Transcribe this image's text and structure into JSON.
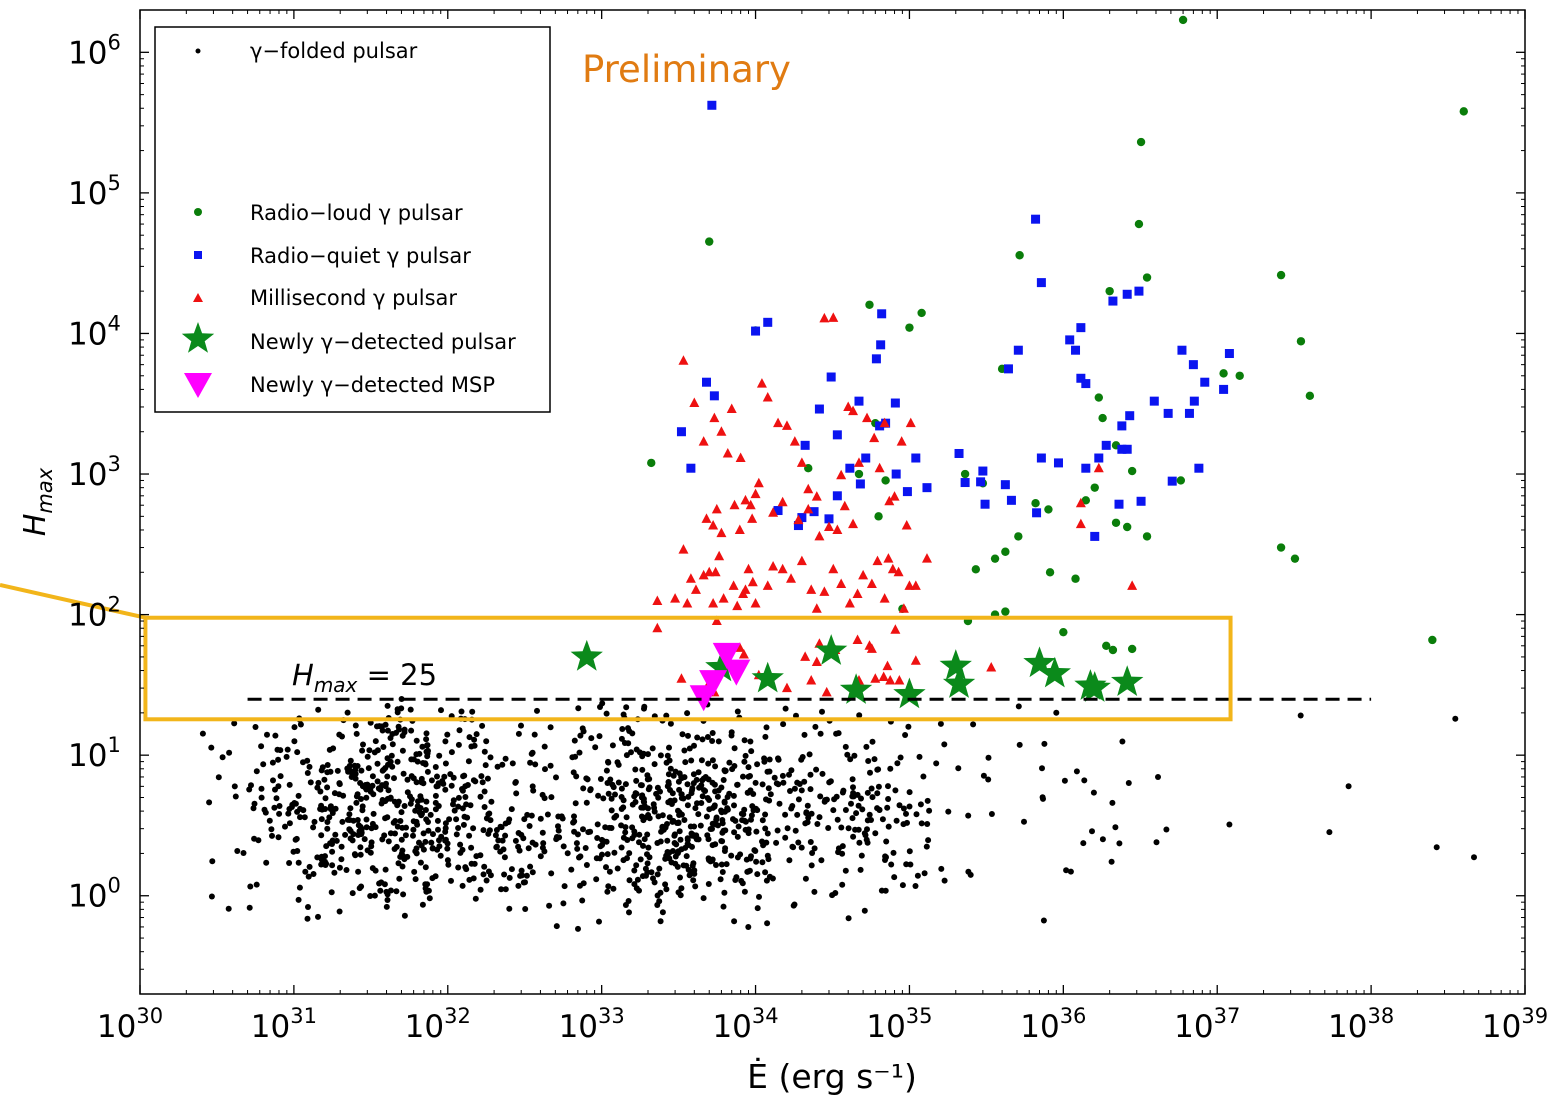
{
  "chart_data": {
    "type": "scatter",
    "title": "",
    "annotation": "Preliminary",
    "xlabel": "Ė (erg s⁻¹)",
    "ylabel": "H_max",
    "x_scale": "log",
    "y_scale": "log",
    "xlim": [
      1e+30,
      1e+39
    ],
    "ylim": [
      0.2,
      2000000.0
    ],
    "grid": false,
    "legend_position": "upper-left",
    "x_ticks": [
      {
        "base": "10",
        "exp": "30"
      },
      {
        "base": "10",
        "exp": "31"
      },
      {
        "base": "10",
        "exp": "32"
      },
      {
        "base": "10",
        "exp": "33"
      },
      {
        "base": "10",
        "exp": "34"
      },
      {
        "base": "10",
        "exp": "35"
      },
      {
        "base": "10",
        "exp": "36"
      },
      {
        "base": "10",
        "exp": "37"
      },
      {
        "base": "10",
        "exp": "38"
      },
      {
        "base": "10",
        "exp": "39"
      }
    ],
    "y_ticks": [
      {
        "base": "10",
        "exp": "0"
      },
      {
        "base": "10",
        "exp": "1"
      },
      {
        "base": "10",
        "exp": "2"
      },
      {
        "base": "10",
        "exp": "3"
      },
      {
        "base": "10",
        "exp": "4"
      },
      {
        "base": "10",
        "exp": "5"
      },
      {
        "base": "10",
        "exp": "6"
      }
    ],
    "threshold": {
      "label_base": "H",
      "label_sub": "max",
      "label_rest": " = 25",
      "y": 25,
      "x_range": [
        5e+30,
        1e+38
      ]
    },
    "highlight_box": {
      "y_range": [
        18,
        95
      ],
      "x_range": [
        3e+30,
        2e+37
      ],
      "color": "#f2b51a"
    },
    "colors": {
      "folded": "#000000",
      "radio_loud": "#0a7d0a",
      "radio_quiet": "#0a14f0",
      "msp": "#ee1111",
      "new_pulsar": "#0b8a1b",
      "new_msp": "#ff00ff"
    },
    "series": [
      {
        "name": "γ−folded pulsar",
        "marker": "dot",
        "color": "#000000",
        "points": "generated"
      },
      {
        "name": "Radio−loud γ pulsar",
        "marker": "circle",
        "color": "#0a7d0a",
        "points": [
          [
            5e+33,
            45000
          ],
          [
            5.5e+34,
            16000
          ],
          [
            3.2e+36,
            230000
          ],
          [
            3.1e+36,
            60000
          ],
          [
            3.5e+36,
            25000
          ],
          [
            2e+36,
            20000
          ],
          [
            5.2e+35,
            36000
          ],
          [
            4e+35,
            5600
          ],
          [
            6e+34,
            2300
          ],
          [
            1.2e+35,
            14000
          ],
          [
            1e+35,
            11000
          ],
          [
            2.2e+34,
            1100
          ],
          [
            1e+34,
            10500
          ],
          [
            2.1e+33,
            1200
          ],
          [
            1.7e+36,
            3500
          ],
          [
            1.8e+36,
            2500
          ],
          [
            2.4e+36,
            2200
          ],
          [
            2.2e+36,
            1600
          ],
          [
            1.6e+36,
            800
          ],
          [
            2.8e+36,
            1050
          ],
          [
            1.4e+36,
            650
          ],
          [
            5.8e+36,
            900
          ],
          [
            3e+35,
            860
          ],
          [
            2.3e+35,
            1000
          ],
          [
            7e+34,
            900
          ],
          [
            4.7e+34,
            1000
          ],
          [
            6.3e+34,
            500
          ],
          [
            2.7e+35,
            210
          ],
          [
            3.6e+35,
            250
          ],
          [
            5.1e+35,
            360
          ],
          [
            4.2e+35,
            280
          ],
          [
            8e+35,
            560
          ],
          [
            6.6e+35,
            620
          ],
          [
            1.2e+36,
            180
          ],
          [
            8.2e+35,
            200
          ],
          [
            2.2e+36,
            450
          ],
          [
            2.6e+36,
            420
          ],
          [
            3.5e+36,
            360
          ],
          [
            3.5e+37,
            8800
          ],
          [
            2.6e+37,
            26000
          ],
          [
            1.4e+37,
            5000
          ],
          [
            1.1e+37,
            5200
          ],
          [
            2.6e+37,
            300
          ],
          [
            3.2e+37,
            250
          ],
          [
            4e+37,
            3600
          ],
          [
            2.5e+38,
            66
          ],
          [
            4e+38,
            380000
          ],
          [
            6e+36,
            1700000
          ],
          [
            9e+34,
            110
          ],
          [
            2.4e+35,
            90
          ],
          [
            3.6e+35,
            100
          ],
          [
            4.2e+35,
            105
          ],
          [
            2.1e+36,
            56
          ],
          [
            1.9e+36,
            60
          ],
          [
            2.8e+36,
            57
          ],
          [
            1e+36,
            75
          ]
        ]
      },
      {
        "name": "Radio−quiet γ pulsar",
        "marker": "square",
        "color": "#0a14f0",
        "points": [
          [
            5.2e+33,
            420000
          ],
          [
            6.6e+35,
            65000
          ],
          [
            7.2e+35,
            23000
          ],
          [
            5.1e+35,
            7600
          ],
          [
            4.4e+35,
            5600
          ],
          [
            1.3e+36,
            11000
          ],
          [
            1.1e+36,
            9000
          ],
          [
            1.2e+36,
            7600
          ],
          [
            1.3e+36,
            4800
          ],
          [
            1.4e+36,
            4400
          ],
          [
            2.1e+36,
            17000
          ],
          [
            2.6e+36,
            19000
          ],
          [
            3.1e+36,
            20000
          ],
          [
            1.2e+34,
            12000
          ],
          [
            1e+34,
            10400
          ],
          [
            3.1e+34,
            4900
          ],
          [
            6.6e+34,
            13800
          ],
          [
            6.1e+34,
            6600
          ],
          [
            6.5e+34,
            8300
          ],
          [
            3.3e+33,
            2000
          ],
          [
            4.8e+33,
            4500
          ],
          [
            5.4e+33,
            3600
          ],
          [
            2.1e+34,
            1600
          ],
          [
            3.4e+34,
            1900
          ],
          [
            2.6e+34,
            2900
          ],
          [
            4.7e+34,
            3300
          ],
          [
            5.2e+34,
            1300
          ],
          [
            8.1e+34,
            3200
          ],
          [
            6.4e+34,
            2200
          ],
          [
            7e+34,
            2300
          ],
          [
            2.7e+36,
            2600
          ],
          [
            2.4e+36,
            2200
          ],
          [
            2.6e+36,
            1500
          ],
          [
            6.6e+36,
            2700
          ],
          [
            7.1e+36,
            3300
          ],
          [
            2.4e+36,
            1500
          ],
          [
            1.9e+36,
            1600
          ],
          [
            1.7e+36,
            1300
          ],
          [
            1.4e+36,
            1100
          ],
          [
            9.3e+35,
            1200
          ],
          [
            7.2e+35,
            1300
          ],
          [
            1.1e+35,
            1300
          ],
          [
            2.9e+35,
            880
          ],
          [
            2.3e+35,
            870
          ],
          [
            2.1e+35,
            1400
          ],
          [
            1.3e+35,
            800
          ],
          [
            9.7e+34,
            750
          ],
          [
            8.2e+34,
            1000
          ],
          [
            4.8e+34,
            850
          ],
          [
            4.1e+34,
            1100
          ],
          [
            3.4e+34,
            700
          ],
          [
            3e+34,
            480
          ],
          [
            2.4e+34,
            540
          ],
          [
            2e+34,
            490
          ],
          [
            1.4e+34,
            550
          ],
          [
            1.9e+34,
            430
          ],
          [
            3.8e+33,
            1100
          ],
          [
            1.6e+36,
            360
          ],
          [
            4.2e+35,
            840
          ],
          [
            3e+35,
            1050
          ],
          [
            3.1e+35,
            610
          ],
          [
            4.6e+35,
            650
          ],
          [
            6.7e+35,
            530
          ],
          [
            2.3e+36,
            610
          ],
          [
            3.2e+36,
            640
          ],
          [
            5.1e+36,
            890
          ],
          [
            7.6e+36,
            1100
          ],
          [
            8.3e+36,
            4500
          ],
          [
            7e+36,
            6000
          ],
          [
            5.9e+36,
            7600
          ],
          [
            1.1e+37,
            4000
          ],
          [
            1.2e+37,
            7200
          ],
          [
            3.9e+36,
            3300
          ],
          [
            4.8e+36,
            2700
          ]
        ]
      },
      {
        "name": "Millisecond γ pulsar",
        "marker": "triangle",
        "color": "#ee1111",
        "points": [
          [
            2.3e+33,
            125
          ],
          [
            2.3e+33,
            80
          ],
          [
            3e+33,
            130
          ],
          [
            3.6e+33,
            120
          ],
          [
            3.4e+33,
            290
          ],
          [
            3.8e+33,
            180
          ],
          [
            4.1e+33,
            150
          ],
          [
            4.6e+33,
            190
          ],
          [
            5e+33,
            200
          ],
          [
            5.5e+33,
            200
          ],
          [
            5.8e+33,
            260
          ],
          [
            5.3e+33,
            120
          ],
          [
            5.6e+33,
            90
          ],
          [
            6.2e+33,
            130
          ],
          [
            7.2e+33,
            160
          ],
          [
            7.6e+33,
            115
          ],
          [
            8.3e+33,
            140
          ],
          [
            8.6e+33,
            150
          ],
          [
            9e+33,
            210
          ],
          [
            9.6e+33,
            170
          ],
          [
            1e+34,
            120
          ],
          [
            1.2e+34,
            160
          ],
          [
            1.3e+34,
            220
          ],
          [
            1.5e+34,
            210
          ],
          [
            1.7e+34,
            180
          ],
          [
            2e+34,
            240
          ],
          [
            2.3e+34,
            150
          ],
          [
            2.5e+34,
            110
          ],
          [
            2.8e+34,
            145
          ],
          [
            3.2e+34,
            210
          ],
          [
            3.6e+34,
            165
          ],
          [
            4.1e+34,
            120
          ],
          [
            4.6e+34,
            140
          ],
          [
            5e+34,
            190
          ],
          [
            5.7e+34,
            165
          ],
          [
            6.2e+34,
            240
          ],
          [
            6.9e+34,
            130
          ],
          [
            7.3e+34,
            250
          ],
          [
            7.8e+34,
            210
          ],
          [
            8.5e+34,
            200
          ],
          [
            9.2e+34,
            110
          ],
          [
            1e+35,
            160
          ],
          [
            1.1e+35,
            160
          ],
          [
            1.3e+35,
            250
          ],
          [
            3.4e+33,
            6400
          ],
          [
            4e+33,
            3200
          ],
          [
            4.6e+33,
            1700
          ],
          [
            5.4e+33,
            2500
          ],
          [
            6e+33,
            2000
          ],
          [
            7e+33,
            2900
          ],
          [
            8e+33,
            1300
          ],
          [
            9.3e+33,
            600
          ],
          [
            1e+34,
            720
          ],
          [
            1.1e+34,
            4400
          ],
          [
            1.2e+34,
            3500
          ],
          [
            1.4e+34,
            2300
          ],
          [
            1.6e+34,
            2200
          ],
          [
            1.8e+34,
            1700
          ],
          [
            2e+34,
            1200
          ],
          [
            2.2e+34,
            780
          ],
          [
            2.5e+34,
            690
          ],
          [
            2.8e+34,
            12800
          ],
          [
            3.2e+34,
            12900
          ],
          [
            3.6e+34,
            980
          ],
          [
            4e+34,
            3000
          ],
          [
            4.3e+34,
            2800
          ],
          [
            4.7e+34,
            1200
          ],
          [
            5.3e+34,
            2500
          ],
          [
            5.9e+34,
            1800
          ],
          [
            6.4e+34,
            1100
          ],
          [
            6.9e+34,
            2300
          ],
          [
            7.4e+34,
            640
          ],
          [
            8e+34,
            690
          ],
          [
            8.9e+34,
            1700
          ],
          [
            9.6e+34,
            430
          ],
          [
            1.02e+35,
            2300
          ],
          [
            4.8e+33,
            480
          ],
          [
            5.3e+33,
            430
          ],
          [
            5.6e+33,
            560
          ],
          [
            6e+33,
            380
          ],
          [
            6.6e+33,
            1400
          ],
          [
            7.3e+33,
            600
          ],
          [
            7.9e+33,
            400
          ],
          [
            8.6e+33,
            650
          ],
          [
            9.5e+33,
            480
          ],
          [
            1.05e+34,
            860
          ],
          [
            1.3e+34,
            530
          ],
          [
            1.5e+34,
            630
          ],
          [
            1.9e+34,
            470
          ],
          [
            2.2e+34,
            560
          ],
          [
            2.6e+34,
            360
          ],
          [
            3e+34,
            420
          ],
          [
            3.4e+34,
            400
          ],
          [
            3.8e+34,
            590
          ],
          [
            4.3e+34,
            440
          ],
          [
            1.3e+36,
            620
          ],
          [
            1.7e+36,
            1100
          ],
          [
            1.3e+36,
            440
          ],
          [
            2.8e+36,
            160
          ],
          [
            3.3e+33,
            35
          ],
          [
            4.8e+33,
            30
          ],
          [
            5.4e+33,
            28
          ],
          [
            7.9e+33,
            58
          ],
          [
            8.4e+33,
            52
          ],
          [
            1.05e+34,
            37
          ],
          [
            1.6e+34,
            30
          ],
          [
            2.1e+34,
            50
          ],
          [
            2.3e+34,
            34
          ],
          [
            2.5e+34,
            46
          ],
          [
            2.9e+34,
            28
          ],
          [
            4.7e+34,
            34
          ],
          [
            6e+34,
            35
          ],
          [
            6.8e+34,
            36
          ],
          [
            7.5e+34,
            34
          ],
          [
            8.6e+34,
            34
          ],
          [
            1.1e+35,
            47
          ],
          [
            2.6e+34,
            62
          ],
          [
            3.3e+34,
            56
          ],
          [
            4.6e+34,
            66
          ],
          [
            5.5e+34,
            60
          ],
          [
            5.7e+34,
            57
          ],
          [
            7.2e+34,
            43
          ],
          [
            8.1e+34,
            78
          ],
          [
            3.4e+35,
            42
          ]
        ]
      },
      {
        "name": "Newly γ−detected pulsar",
        "marker": "star",
        "color": "#0b8a1b",
        "points": [
          [
            8e+32,
            50
          ],
          [
            6e+33,
            42
          ],
          [
            1.2e+34,
            35
          ],
          [
            3.1e+34,
            55
          ],
          [
            4.5e+34,
            29
          ],
          [
            1e+35,
            27
          ],
          [
            2e+35,
            43
          ],
          [
            2.1e+35,
            32
          ],
          [
            7e+35,
            45
          ],
          [
            8.8e+35,
            38
          ],
          [
            1.5e+36,
            31
          ],
          [
            1.6e+36,
            30
          ],
          [
            2.6e+36,
            33
          ]
        ]
      },
      {
        "name": "Newly γ−detected MSP",
        "marker": "triangle-down",
        "color": "#ff00ff",
        "points": [
          [
            4.6e+33,
            25
          ],
          [
            5.3e+33,
            32
          ],
          [
            6.5e+33,
            50
          ],
          [
            7.5e+33,
            38
          ]
        ]
      }
    ]
  }
}
